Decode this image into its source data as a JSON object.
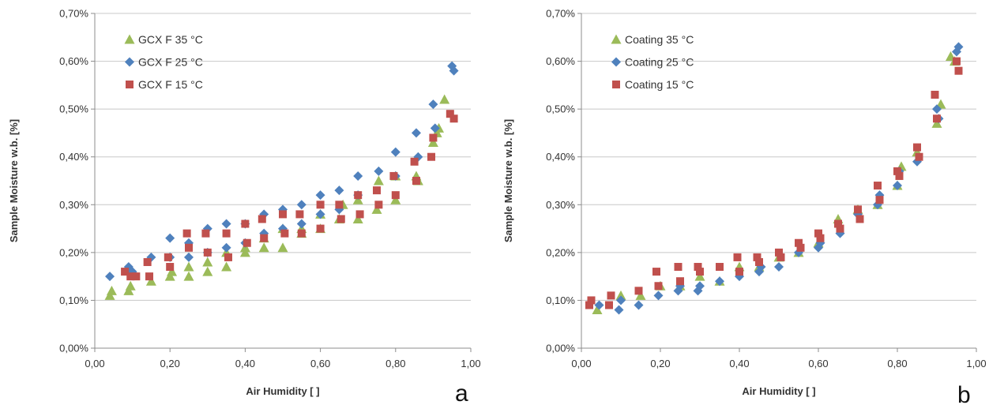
{
  "colors": {
    "green": "#9BBB59",
    "blue": "#4F81BD",
    "red": "#C0504D",
    "grid": "#C8C8C8",
    "axis": "#8C8C8C"
  },
  "chart_data": [
    {
      "type": "scatter",
      "panel_label": "a",
      "xlabel": "Air Humidity [ ]",
      "ylabel": "Sample Moisture w.b. [%]",
      "xlim": [
        0,
        1
      ],
      "ylim": [
        0,
        0.7
      ],
      "xticks": [
        "0,00",
        "0,20",
        "0,40",
        "0,60",
        "0,80",
        "1,00"
      ],
      "yticks": [
        "0,00%",
        "0,10%",
        "0,20%",
        "0,30%",
        "0,40%",
        "0,50%",
        "0,60%",
        "0,70%"
      ],
      "grid": "horizontal",
      "legend_position": "top-left",
      "series": [
        {
          "name": "GCX F 35 °C",
          "marker": "triangle",
          "color": "#9BBB59",
          "x": [
            0.04,
            0.045,
            0.09,
            0.095,
            0.15,
            0.2,
            0.205,
            0.25,
            0.25,
            0.3,
            0.3,
            0.35,
            0.35,
            0.4,
            0.4,
            0.45,
            0.45,
            0.5,
            0.5,
            0.55,
            0.55,
            0.6,
            0.6,
            0.65,
            0.66,
            0.7,
            0.7,
            0.75,
            0.755,
            0.8,
            0.8,
            0.855,
            0.86,
            0.9,
            0.91,
            0.915,
            0.93
          ],
          "y": [
            0.11,
            0.12,
            0.12,
            0.13,
            0.14,
            0.15,
            0.16,
            0.15,
            0.17,
            0.16,
            0.18,
            0.17,
            0.2,
            0.2,
            0.21,
            0.21,
            0.23,
            0.21,
            0.25,
            0.24,
            0.25,
            0.25,
            0.28,
            0.27,
            0.3,
            0.27,
            0.31,
            0.29,
            0.35,
            0.31,
            0.36,
            0.36,
            0.35,
            0.43,
            0.45,
            0.46,
            0.52
          ]
        },
        {
          "name": "GCX F 25 °C",
          "marker": "diamond",
          "color": "#4F81BD",
          "x": [
            0.04,
            0.09,
            0.1,
            0.15,
            0.2,
            0.2,
            0.25,
            0.25,
            0.3,
            0.3,
            0.35,
            0.35,
            0.4,
            0.4,
            0.45,
            0.45,
            0.5,
            0.5,
            0.55,
            0.55,
            0.6,
            0.6,
            0.65,
            0.65,
            0.7,
            0.7,
            0.755,
            0.8,
            0.8,
            0.855,
            0.86,
            0.9,
            0.905,
            0.95,
            0.955
          ],
          "y": [
            0.15,
            0.17,
            0.16,
            0.19,
            0.23,
            0.19,
            0.22,
            0.19,
            0.25,
            0.2,
            0.26,
            0.21,
            0.26,
            0.22,
            0.28,
            0.24,
            0.29,
            0.25,
            0.3,
            0.26,
            0.32,
            0.28,
            0.33,
            0.29,
            0.36,
            0.32,
            0.37,
            0.41,
            0.36,
            0.45,
            0.4,
            0.51,
            0.46,
            0.59,
            0.58
          ]
        },
        {
          "name": "GCX F 15 °C",
          "marker": "square",
          "color": "#C0504D",
          "x": [
            0.08,
            0.095,
            0.11,
            0.14,
            0.145,
            0.195,
            0.2,
            0.245,
            0.25,
            0.295,
            0.3,
            0.35,
            0.355,
            0.4,
            0.405,
            0.445,
            0.45,
            0.5,
            0.505,
            0.545,
            0.55,
            0.6,
            0.6,
            0.65,
            0.655,
            0.7,
            0.705,
            0.75,
            0.755,
            0.795,
            0.8,
            0.85,
            0.855,
            0.895,
            0.9,
            0.945,
            0.955
          ],
          "y": [
            0.16,
            0.15,
            0.15,
            0.18,
            0.15,
            0.19,
            0.17,
            0.24,
            0.21,
            0.24,
            0.2,
            0.24,
            0.19,
            0.26,
            0.22,
            0.27,
            0.23,
            0.28,
            0.24,
            0.28,
            0.24,
            0.3,
            0.25,
            0.3,
            0.27,
            0.32,
            0.28,
            0.33,
            0.3,
            0.36,
            0.32,
            0.39,
            0.35,
            0.4,
            0.44,
            0.49,
            0.48
          ]
        }
      ]
    },
    {
      "type": "scatter",
      "panel_label": "b",
      "xlabel": "Air Humidity [ ]",
      "ylabel": "Sample Moisture w.b. [%]",
      "xlim": [
        0,
        1
      ],
      "ylim": [
        0,
        0.7
      ],
      "xticks": [
        "0,00",
        "0,20",
        "0,40",
        "0,60",
        "0,80",
        "1,00"
      ],
      "yticks": [
        "0,00%",
        "0,10%",
        "0,20%",
        "0,30%",
        "0,40%",
        "0,50%",
        "0,60%",
        "0,70%"
      ],
      "grid": "horizontal",
      "legend_position": "top-left",
      "series": [
        {
          "name": "Coating 35 °C",
          "marker": "triangle",
          "color": "#9BBB59",
          "x": [
            0.04,
            0.1,
            0.15,
            0.2,
            0.25,
            0.3,
            0.35,
            0.4,
            0.45,
            0.5,
            0.55,
            0.6,
            0.65,
            0.7,
            0.75,
            0.8,
            0.81,
            0.85,
            0.9,
            0.91,
            0.935,
            0.945
          ],
          "y": [
            0.08,
            0.11,
            0.11,
            0.13,
            0.13,
            0.15,
            0.14,
            0.17,
            0.17,
            0.19,
            0.2,
            0.22,
            0.27,
            0.29,
            0.3,
            0.34,
            0.38,
            0.41,
            0.47,
            0.51,
            0.61,
            0.6
          ],
          "x_extra_note": ""
        },
        {
          "name": "Coating 25 °C",
          "marker": "diamond",
          "color": "#4F81BD",
          "x": [
            0.045,
            0.095,
            0.1,
            0.145,
            0.195,
            0.245,
            0.25,
            0.295,
            0.3,
            0.35,
            0.4,
            0.45,
            0.455,
            0.5,
            0.55,
            0.6,
            0.605,
            0.655,
            0.7,
            0.75,
            0.755,
            0.8,
            0.805,
            0.85,
            0.9,
            0.905,
            0.95,
            0.955
          ],
          "y": [
            0.09,
            0.08,
            0.1,
            0.09,
            0.11,
            0.12,
            0.13,
            0.12,
            0.13,
            0.14,
            0.15,
            0.16,
            0.17,
            0.17,
            0.2,
            0.21,
            0.22,
            0.24,
            0.28,
            0.3,
            0.32,
            0.34,
            0.37,
            0.39,
            0.5,
            0.48,
            0.62,
            0.63
          ]
        },
        {
          "name": "Coating 15 °C",
          "marker": "square",
          "color": "#C0504D",
          "x": [
            0.02,
            0.025,
            0.07,
            0.075,
            0.145,
            0.19,
            0.195,
            0.245,
            0.25,
            0.295,
            0.3,
            0.35,
            0.395,
            0.4,
            0.445,
            0.45,
            0.5,
            0.505,
            0.55,
            0.555,
            0.6,
            0.605,
            0.65,
            0.655,
            0.7,
            0.705,
            0.75,
            0.755,
            0.8,
            0.805,
            0.85,
            0.855,
            0.895,
            0.9,
            0.95,
            0.955
          ],
          "y": [
            0.09,
            0.1,
            0.09,
            0.11,
            0.12,
            0.16,
            0.13,
            0.17,
            0.14,
            0.17,
            0.16,
            0.17,
            0.19,
            0.16,
            0.19,
            0.18,
            0.2,
            0.19,
            0.22,
            0.21,
            0.24,
            0.23,
            0.26,
            0.25,
            0.29,
            0.27,
            0.34,
            0.31,
            0.37,
            0.36,
            0.42,
            0.4,
            0.53,
            0.48,
            0.6,
            0.58
          ]
        }
      ]
    }
  ]
}
